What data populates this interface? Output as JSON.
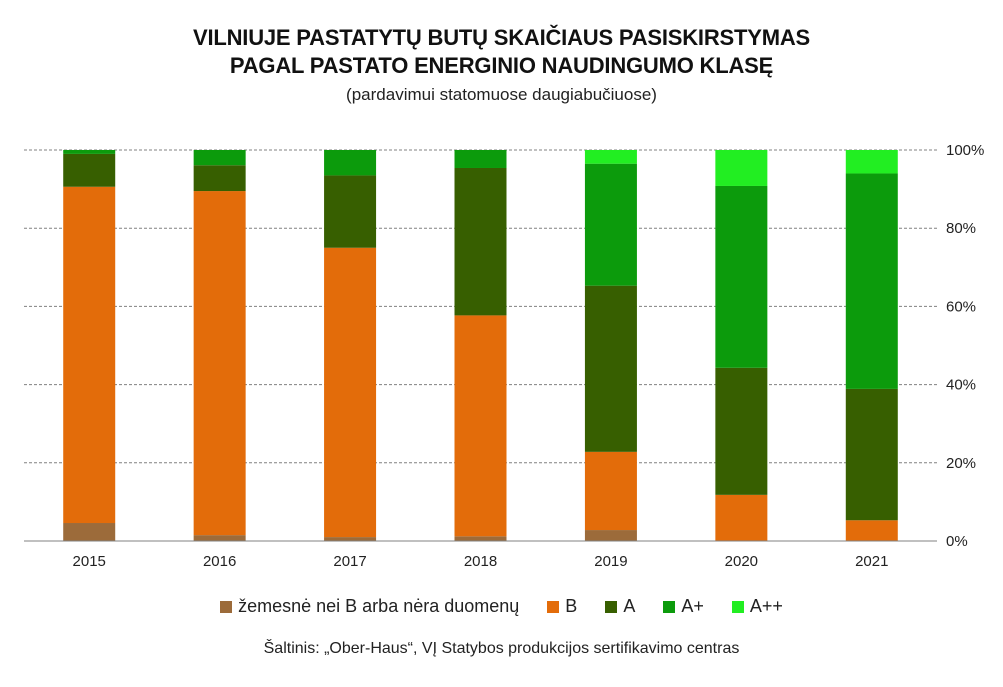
{
  "title_line1": "VILNIUJE PASTATYTŲ BUTŲ SKAIČIAUS PASISKIRSTYMAS",
  "title_line2": "PAGAL PASTATO ENERGINIO NAUDINGUMO KLASĘ",
  "subtitle": "(pardavimui statomuose daugiabučiuose)",
  "source": "Šaltinis: „Ober-Haus“, VĮ Statybos produkcijos sertifikavimo centras",
  "chart_data": {
    "type": "bar",
    "stacked": true,
    "categories": [
      "2015",
      "2016",
      "2017",
      "2018",
      "2019",
      "2020",
      "2021"
    ],
    "y_ticks": [
      "0%",
      "20%",
      "40%",
      "60%",
      "80%",
      "100%"
    ],
    "ylim": [
      0,
      100
    ],
    "y_axis_position": "right",
    "grid": true,
    "legend_position": "bottom",
    "series": [
      {
        "name": "žemesnė nei B arba nėra duomenų",
        "color": "#9c6b3a",
        "values": [
          4.6,
          1.5,
          1.0,
          1.2,
          2.8,
          0.0,
          0.0
        ]
      },
      {
        "name": "B",
        "color": "#e36c0a",
        "values": [
          86.0,
          88.0,
          74.0,
          56.5,
          20.0,
          11.8,
          5.3
        ]
      },
      {
        "name": "A",
        "color": "#375f00",
        "values": [
          8.4,
          6.6,
          18.5,
          37.7,
          42.5,
          32.5,
          33.6
        ]
      },
      {
        "name": "A+",
        "color": "#0c9b0c",
        "values": [
          1.0,
          3.9,
          6.5,
          4.6,
          31.2,
          46.5,
          55.1
        ]
      },
      {
        "name": "A++",
        "color": "#22ee22",
        "values": [
          0.0,
          0.0,
          0.0,
          0.0,
          3.5,
          9.2,
          6.0
        ]
      }
    ]
  }
}
